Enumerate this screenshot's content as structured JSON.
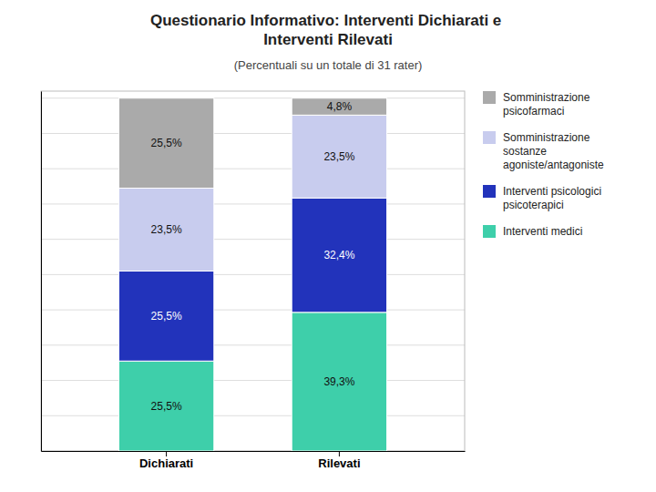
{
  "chart_data": {
    "type": "bar",
    "stacked": true,
    "title": "Questionario Informativo: Interventi Dichiarati e\nInterventi Rilevati",
    "subtitle": "(Percentuali su un totale di 31 rater)",
    "categories": [
      "Dichiarati",
      "Rilevati"
    ],
    "series": [
      {
        "name": "Interventi medici",
        "color": "#3ecfaa",
        "values": [
          25.5,
          39.3
        ],
        "value_labels": [
          "25,5%",
          "39,3%"
        ]
      },
      {
        "name": "Interventi psicologici\npsicoterapici",
        "color": "#2233bb",
        "values": [
          25.5,
          32.4
        ],
        "value_labels": [
          "25,5%",
          "32,4%"
        ]
      },
      {
        "name": "Somministrazione\nsostanze\nagoniste/antagoniste",
        "color": "#c8ccee",
        "values": [
          23.5,
          23.5
        ],
        "value_labels": [
          "23,5%",
          "23,5%"
        ]
      },
      {
        "name": "Somministrazione\npsicofarmaci",
        "color": "#aaaaaa",
        "values": [
          25.5,
          4.8
        ],
        "value_labels": [
          "25,5%",
          "4,8%"
        ]
      }
    ],
    "ylim": [
      0,
      102
    ],
    "yticks": [
      0,
      10,
      20,
      30,
      40,
      50,
      60,
      70,
      80,
      90,
      100
    ],
    "grid": true,
    "tick_labels": "x",
    "data_labels": true,
    "legend": "right"
  }
}
